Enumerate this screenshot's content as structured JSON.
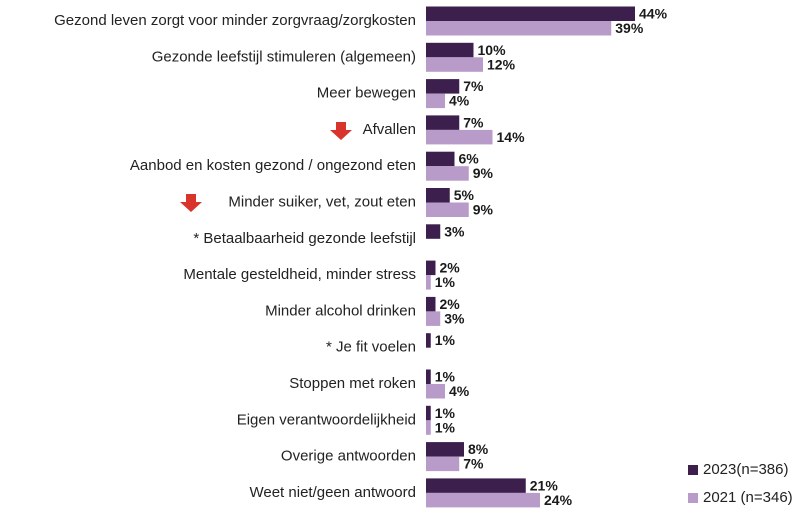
{
  "chart_data": {
    "type": "bar",
    "orientation": "horizontal",
    "categories": [
      "Gezond leven zorgt voor minder zorgvraag/zorgkosten",
      "Gezonde leefstijl stimuleren (algemeen)",
      "Meer bewegen",
      "Afvallen",
      "Aanbod en kosten gezond / ongezond eten",
      "Minder suiker, vet, zout eten",
      "* Betaalbaarheid gezonde leefstijl",
      "Mentale gesteldheid, minder stress",
      "Minder alcohol drinken",
      "* Je fit voelen",
      "Stoppen met roken",
      "Eigen verantwoordelijkheid",
      "Overige antwoorden",
      "Weet niet/geen antwoord"
    ],
    "series": [
      {
        "name": "2023(n=386)",
        "color": "#3d1f4d",
        "values": [
          44,
          10,
          7,
          7,
          6,
          5,
          3,
          2,
          2,
          1,
          1,
          1,
          8,
          21
        ],
        "value_labels": [
          "44%",
          "10%",
          "7%",
          "7%",
          "6%",
          "5%",
          "3%",
          "2%",
          "2%",
          "1%",
          "1%",
          "1%",
          "8%",
          "21%"
        ]
      },
      {
        "name": "2021 (n=346)",
        "color": "#b99bc9",
        "values": [
          39,
          12,
          4,
          14,
          9,
          9,
          null,
          1,
          3,
          null,
          4,
          1,
          7,
          24
        ],
        "value_labels": [
          "39%",
          "12%",
          "4%",
          "14%",
          "9%",
          "9%",
          null,
          "1%",
          "3%",
          null,
          "4%",
          "1%",
          "7%",
          "24%"
        ]
      }
    ],
    "legend": "bottom-right"
  }
}
